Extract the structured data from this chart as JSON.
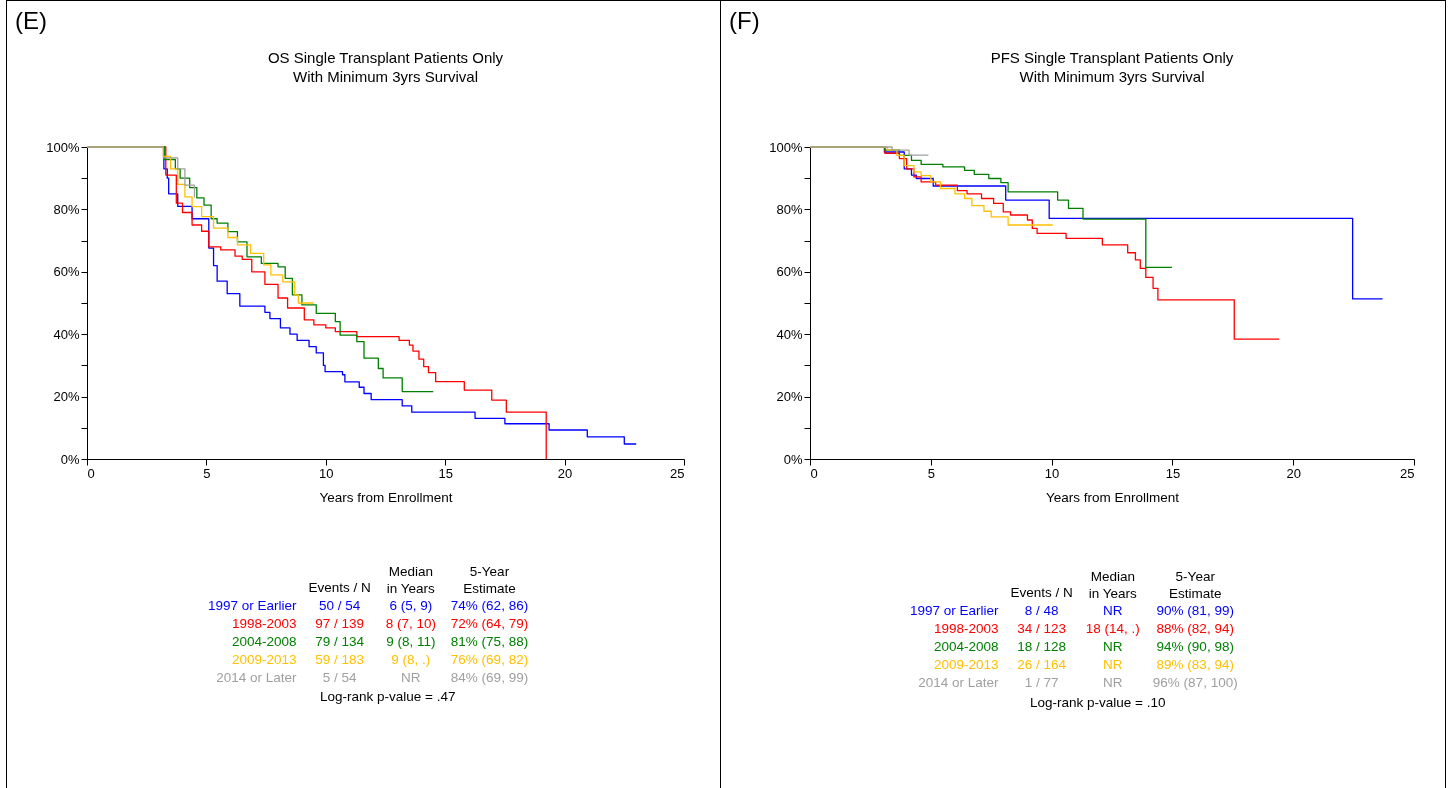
{
  "chart_data": [
    {
      "type": "step",
      "title": "OS Single Transplant Patients Only",
      "subtitle": "With Minimum 3yrs Survival",
      "xlabel": "Years from Enrollment",
      "xlim": [
        0,
        25
      ],
      "xticks": [
        0,
        5,
        10,
        15,
        20,
        25
      ],
      "ylim": [
        0,
        100
      ],
      "yticks": [
        {
          "value": 0,
          "label": "0%"
        },
        {
          "value": 10,
          "label": null
        },
        {
          "value": 20,
          "label": "20%"
        },
        {
          "value": 30,
          "label": null
        },
        {
          "value": 40,
          "label": "40%"
        },
        {
          "value": 50,
          "label": null
        },
        {
          "value": 60,
          "label": "60%"
        },
        {
          "value": 70,
          "label": null
        },
        {
          "value": 80,
          "label": "80%"
        },
        {
          "value": 90,
          "label": null
        },
        {
          "value": 100,
          "label": "100%"
        }
      ],
      "grid": false,
      "legend": false,
      "series": [
        {
          "name": "1997 or Earlier",
          "color": "#0000ff",
          "x": [
            0,
            3.22,
            3.36,
            3.42,
            3.8,
            4.4,
            5.1,
            5.3,
            5.45,
            5.87,
            6.4,
            7.45,
            7.66,
            8.1,
            8.5,
            8.8,
            9.3,
            9.6,
            9.9,
            9.97,
            10.7,
            10.8,
            11.4,
            11.6,
            11.9,
            13.2,
            13.6,
            16.25,
            17.5,
            19.35,
            20.95,
            22.5,
            23.0
          ],
          "values": [
            100,
            93,
            90,
            85,
            81,
            77,
            67.6,
            62,
            57,
            53,
            49,
            47,
            45,
            42,
            40,
            38,
            36,
            34,
            30,
            28,
            27,
            24.7,
            23,
            21,
            19,
            17,
            15,
            13,
            11.3,
            9.3,
            7.1,
            4.8,
            4.8
          ]
        },
        {
          "name": "1998-2003",
          "color": "#ff0000",
          "x": [
            0,
            3.3,
            3.74,
            4.0,
            4.4,
            4.8,
            5.1,
            5.6,
            6.2,
            6.5,
            6.9,
            7.45,
            8.0,
            8.4,
            9.1,
            9.5,
            10.0,
            10.4,
            11.3,
            13.07,
            13.5,
            13.65,
            13.9,
            14.1,
            14.3,
            14.6,
            15.8,
            16.95,
            17.56,
            19.23
          ],
          "values": [
            100,
            91,
            82,
            79,
            75,
            73,
            68,
            67,
            65,
            64,
            60,
            56,
            51.6,
            48.4,
            44.6,
            43,
            42,
            40.8,
            39.2,
            38,
            36.5,
            34.6,
            32,
            29.6,
            27.7,
            24.8,
            22.1,
            18.9,
            15,
            0
          ]
        },
        {
          "name": "2004-2008",
          "color": "#008000",
          "x": [
            0,
            3.25,
            3.7,
            3.9,
            4.3,
            4.6,
            4.9,
            5.2,
            5.45,
            5.9,
            6.3,
            6.7,
            7.3,
            8.0,
            8.3,
            8.6,
            9.0,
            9.6,
            10.4,
            10.6,
            11.3,
            11.6,
            12.2,
            12.4,
            13.2,
            14.5
          ],
          "values": [
            100,
            96,
            93,
            90,
            87,
            83.7,
            81.4,
            77,
            75.6,
            72.9,
            69.6,
            64.8,
            62.7,
            61.6,
            57.9,
            52.6,
            49.4,
            46.7,
            44,
            39.7,
            37.6,
            32.3,
            29,
            26,
            21.6,
            21.6
          ]
        },
        {
          "name": "2009-2013",
          "color": "#ffc000",
          "x": [
            0,
            3.2,
            3.5,
            3.8,
            4.1,
            4.4,
            4.8,
            5.3,
            5.9,
            6.3,
            6.85,
            7.4,
            7.7,
            8.2,
            8.7,
            8.85,
            9.5
          ],
          "values": [
            100,
            97,
            93,
            88,
            84,
            80.9,
            77.7,
            74,
            71,
            68.6,
            65.9,
            62.2,
            59,
            56.8,
            52.6,
            50,
            50
          ]
        },
        {
          "name": "2014 or Later",
          "color": "#a0a0a0",
          "x": [
            0,
            3.2,
            3.8,
            4.1,
            4.5
          ],
          "values": [
            100,
            96.5,
            93,
            87.8,
            83.7
          ]
        }
      ],
      "annotations": [
        "(E)",
        "Events / N",
        "Median in Years",
        "5-Year Estimate",
        "50 / 54",
        "6 (5, 9)",
        "74% (62, 86)",
        "97 / 139",
        "8 (7, 10)",
        "72% (64, 79)",
        "79 / 134",
        "9 (8, 11)",
        "81% (75, 88)",
        "59 / 183",
        "9 (8, .)",
        "76% (69, 82)",
        "5 / 54",
        "NR",
        "84% (69, 99)",
        "Log-rank p-value = .47"
      ]
    },
    {
      "type": "step",
      "title": "PFS Single Transplant Patients Only",
      "subtitle": "With Minimum 3yrs Survival",
      "xlabel": "Years from Enrollment",
      "xlim": [
        0,
        25
      ],
      "xticks": [
        0,
        5,
        10,
        15,
        20,
        25
      ],
      "ylim": [
        0,
        100
      ],
      "yticks": [
        {
          "value": 0,
          "label": "0%"
        },
        {
          "value": 10,
          "label": null
        },
        {
          "value": 20,
          "label": "20%"
        },
        {
          "value": 30,
          "label": null
        },
        {
          "value": 40,
          "label": "40%"
        },
        {
          "value": 50,
          "label": null
        },
        {
          "value": 60,
          "label": "60%"
        },
        {
          "value": 70,
          "label": null
        },
        {
          "value": 80,
          "label": "80%"
        },
        {
          "value": 90,
          "label": null
        },
        {
          "value": 100,
          "label": "100%"
        }
      ],
      "grid": false,
      "legend": false,
      "series": [
        {
          "name": "1997 or Earlier",
          "color": "#0000ff",
          "x": [
            0,
            3.08,
            3.9,
            4.2,
            4.4,
            5.1,
            8.1,
            9.9,
            22.46,
            23.7
          ],
          "values": [
            100,
            98.4,
            93,
            91,
            89.9,
            87.5,
            83,
            77.1,
            51.3,
            51.3
          ]
        },
        {
          "name": "1998-2003",
          "color": "#ff0000",
          "x": [
            0,
            3.1,
            3.7,
            4.0,
            4.3,
            4.6,
            5.2,
            6.1,
            6.5,
            7.1,
            7.6,
            8.0,
            8.3,
            9.0,
            9.2,
            9.4,
            10.6,
            12.1,
            13.15,
            13.47,
            13.67,
            13.9,
            14.2,
            14.4,
            17.56,
            19.42
          ],
          "values": [
            100,
            98,
            96.3,
            93,
            90.4,
            88.8,
            87.8,
            86,
            85,
            83.5,
            81.9,
            79.2,
            78.2,
            76.6,
            73.9,
            72.3,
            70.7,
            68.6,
            66.1,
            63.8,
            61.1,
            58.2,
            54.7,
            51,
            38.4,
            38.4
          ]
        },
        {
          "name": "2004-2008",
          "color": "#008000",
          "x": [
            0,
            3.1,
            3.7,
            4.2,
            4.6,
            5.5,
            6.4,
            6.8,
            7.4,
            7.9,
            8.2,
            10.25,
            10.7,
            11.3,
            13.9,
            14.98
          ],
          "values": [
            100,
            99,
            97.3,
            95.7,
            94.4,
            93.6,
            92.5,
            91.2,
            89.9,
            88.6,
            85.6,
            83,
            80.3,
            76.9,
            61.4,
            61.4
          ]
        },
        {
          "name": "2009-2013",
          "color": "#ffc000",
          "x": [
            0,
            3.2,
            3.6,
            3.9,
            4.3,
            4.6,
            5.0,
            5.4,
            6.0,
            6.4,
            6.7,
            7.2,
            7.5,
            8.2,
            10.05
          ],
          "values": [
            100,
            99,
            97.3,
            94,
            92,
            90.8,
            88.8,
            86.7,
            85,
            83.5,
            81.2,
            79.4,
            77.6,
            75,
            75
          ]
        },
        {
          "name": "2014 or Later",
          "color": "#a0a0a0",
          "x": [
            0,
            3.4,
            4.1,
            4.9
          ],
          "values": [
            100,
            99,
            97.4,
            97.4
          ]
        }
      ],
      "annotations": [
        "(F)",
        "Events / N",
        "Median in Years",
        "5-Year Estimate",
        "8 / 48",
        "NR",
        "90% (81, 99)",
        "34 / 123",
        "18 (14, .)",
        "88% (82, 94)",
        "18 / 128",
        "NR",
        "94% (90, 98)",
        "26 / 164",
        "NR",
        "89% (83, 94)",
        "1 / 77",
        "NR",
        "96% (87, 100)",
        "Log-rank p-value = .10"
      ]
    }
  ]
}
